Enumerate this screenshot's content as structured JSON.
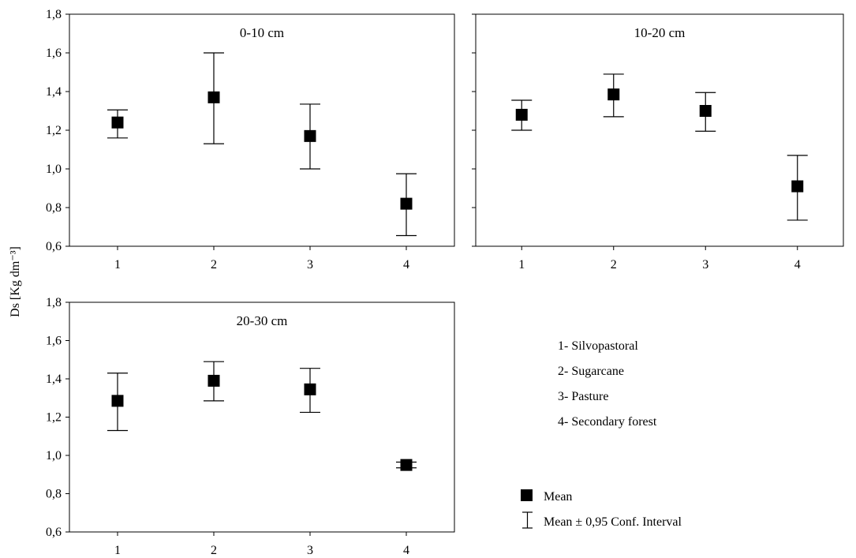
{
  "chart_data": [
    {
      "type": "scatter",
      "title": "0-10 cm",
      "categories": [
        "1",
        "2",
        "3",
        "4"
      ],
      "mean": [
        1.24,
        1.37,
        1.17,
        0.82
      ],
      "ci_low": [
        1.16,
        1.13,
        1.0,
        0.655
      ],
      "ci_high": [
        1.305,
        1.6,
        1.335,
        0.975
      ],
      "ylim": [
        0.6,
        1.8
      ],
      "yticks": [
        "0,6",
        "0,8",
        "1,0",
        "1,2",
        "1,4",
        "1,6",
        "1,8"
      ],
      "show_ytick_labels": true,
      "show_xtick_labels": true
    },
    {
      "type": "scatter",
      "title": "10-20 cm",
      "categories": [
        "1",
        "2",
        "3",
        "4"
      ],
      "mean": [
        1.28,
        1.385,
        1.3,
        0.91
      ],
      "ci_low": [
        1.2,
        1.27,
        1.195,
        0.735
      ],
      "ci_high": [
        1.355,
        1.49,
        1.395,
        1.07
      ],
      "ylim": [
        0.6,
        1.8
      ],
      "yticks": [
        "0,6",
        "0,8",
        "1,0",
        "1,2",
        "1,4",
        "1,6",
        "1,8"
      ],
      "show_ytick_labels": false,
      "show_xtick_labels": true
    },
    {
      "type": "scatter",
      "title": "20-30 cm",
      "categories": [
        "1",
        "2",
        "3",
        "4"
      ],
      "mean": [
        1.285,
        1.39,
        1.345,
        0.95
      ],
      "ci_low": [
        1.13,
        1.285,
        1.225,
        0.935
      ],
      "ci_high": [
        1.43,
        1.49,
        1.455,
        0.965
      ],
      "ylim": [
        0.6,
        1.8
      ],
      "yticks": [
        "0,6",
        "0,8",
        "1,0",
        "1,2",
        "1,4",
        "1,6",
        "1,8"
      ],
      "show_ytick_labels": true,
      "show_xtick_labels": true
    }
  ],
  "ylabel": "Ds [Kg dm⁻³]",
  "category_legend": [
    "1- Silvopastoral",
    "2- Sugarcane",
    "3- Pasture",
    "4- Secondary forest"
  ],
  "symbol_legend": {
    "mean": "Mean",
    "ci": "Mean ± 0,95 Conf. Interval"
  },
  "colors": {
    "marker": "#000000",
    "axis": "#000000",
    "background": "#ffffff"
  }
}
